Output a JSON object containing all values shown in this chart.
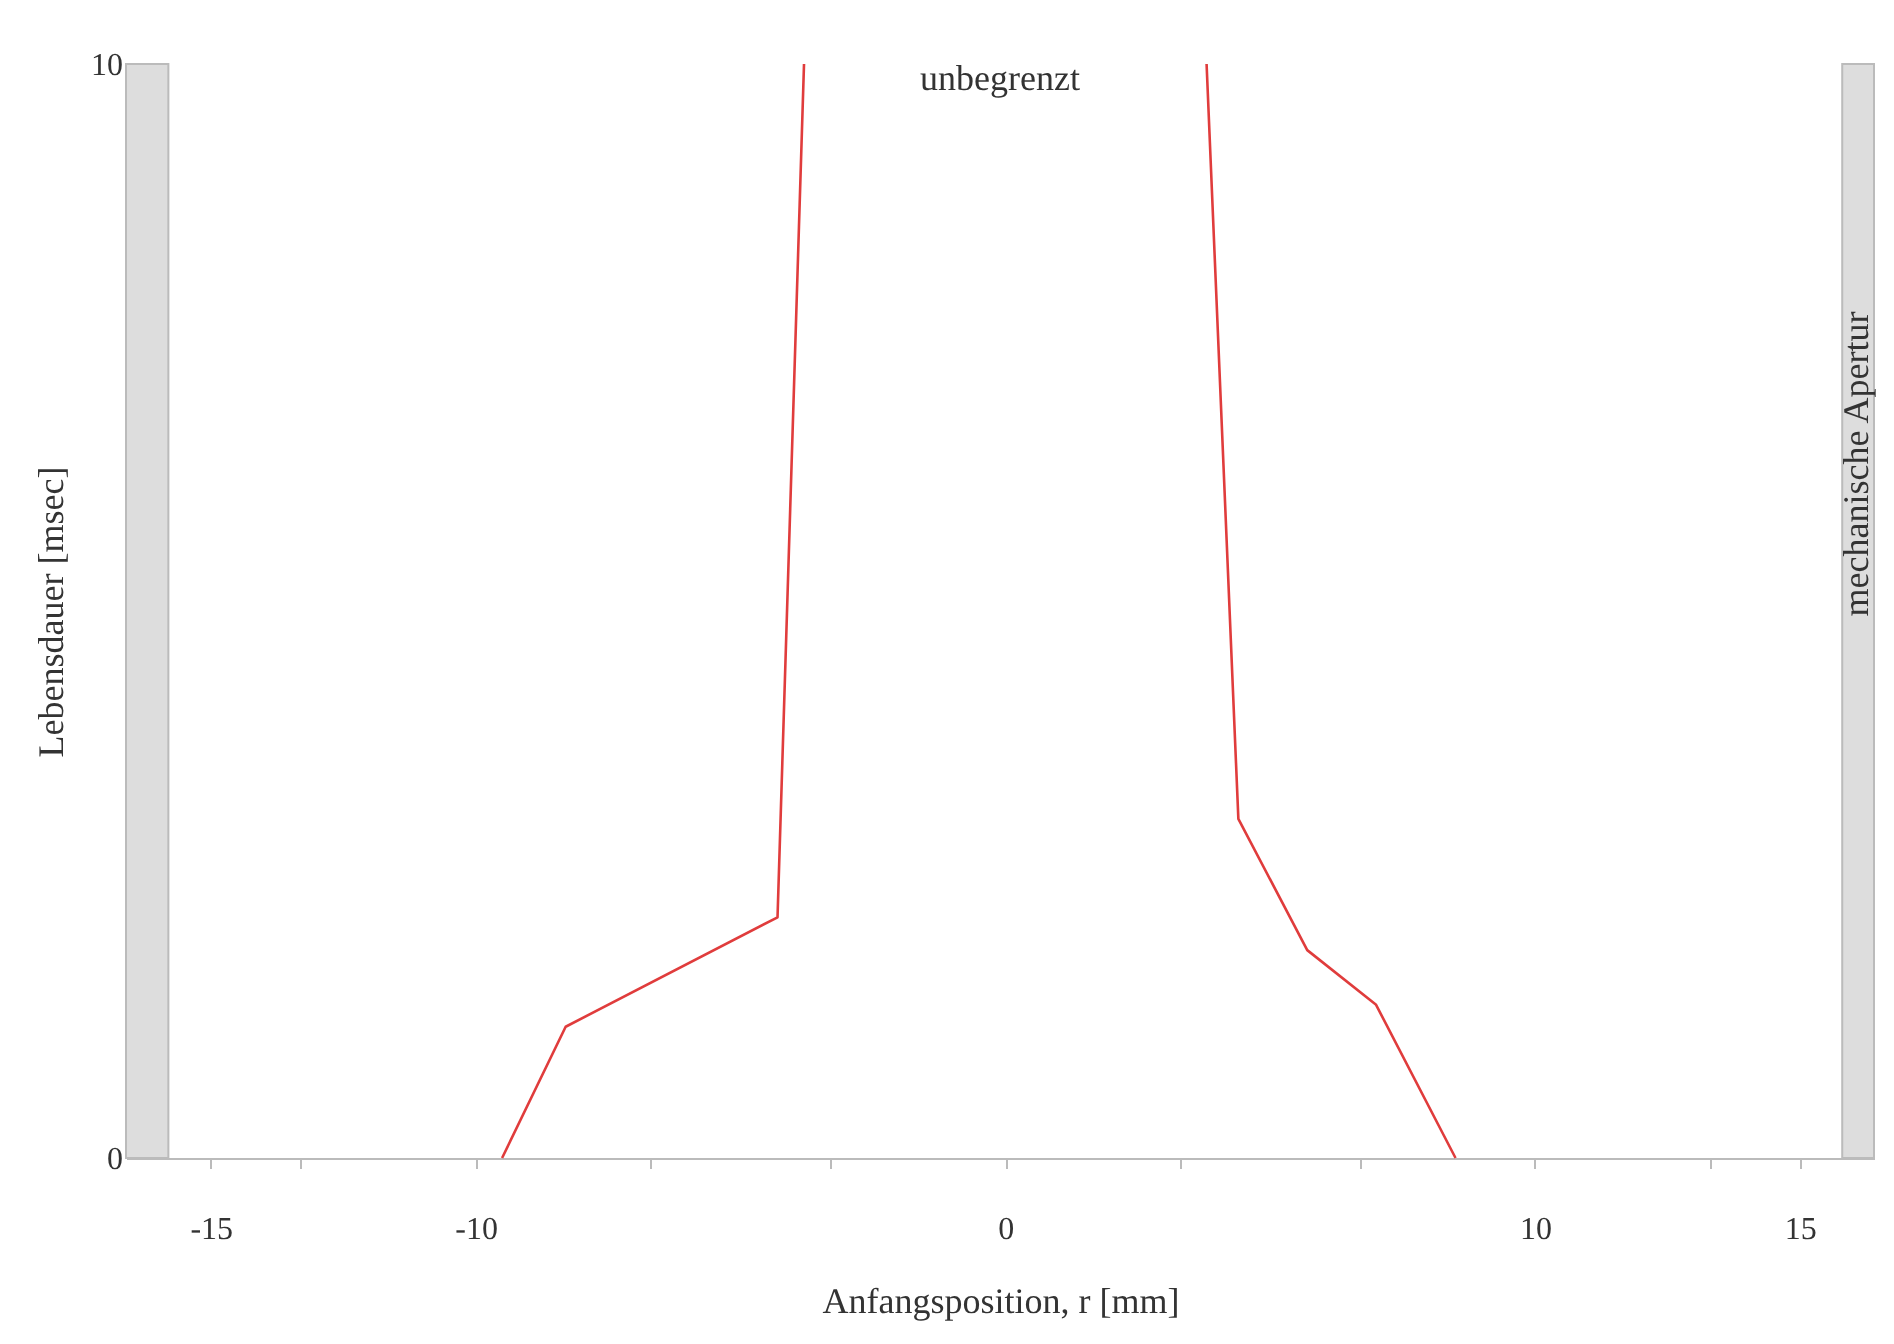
{
  "chart_data": {
    "type": "line",
    "xlabel": "Anfangsposition, r [mm]",
    "ylabel": "Lebensdauer [msec]",
    "series": [
      {
        "color": "#e03c3c",
        "x": [
          -9.5,
          -8.3,
          -4.3,
          -3.8
        ],
        "values": [
          0,
          1.2,
          2.2,
          10
        ]
      },
      {
        "color": "#e03c3c",
        "x": [
          3.8,
          4.4,
          5.7,
          7.0,
          8.5
        ],
        "values": [
          10,
          3.1,
          1.9,
          1.4,
          0
        ]
      }
    ],
    "xlim": [
      -16.6,
      16.4
    ],
    "ylim": [
      0,
      10
    ],
    "xticks": [
      -15,
      {
        "value": -13.3,
        "label": null
      },
      -10,
      {
        "value": -6.7,
        "label": null
      },
      {
        "value": -3.3,
        "label": null
      },
      0,
      {
        "value": 3.3,
        "label": null
      },
      {
        "value": 6.7,
        "label": null
      },
      10,
      {
        "value": 13.3,
        "label": null
      },
      15
    ],
    "yticks": [
      0,
      10
    ],
    "bands": [
      {
        "axis": "x",
        "from": -16.6,
        "to": -15.8,
        "label": null,
        "color": "#dddddd"
      },
      {
        "axis": "x",
        "from": 15.8,
        "to": 16.4,
        "label": "mechanische Apertur",
        "color": "#dddddd"
      }
    ],
    "annotations": [
      "unbegrenzt"
    ],
    "grid": false,
    "line_style": "solid",
    "marker": "none"
  }
}
